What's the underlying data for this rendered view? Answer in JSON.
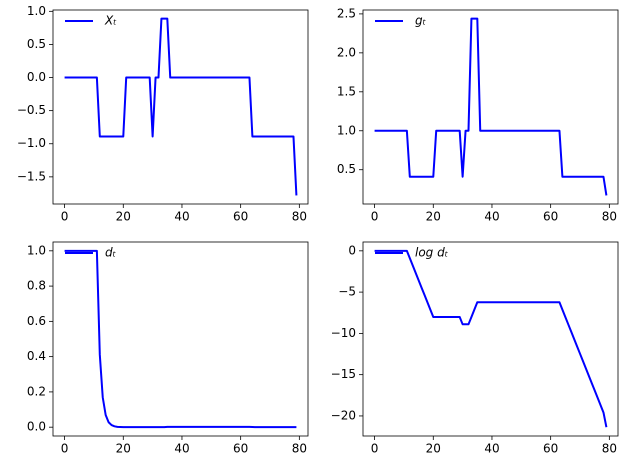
{
  "chart_data": [
    {
      "type": "line",
      "legend": "upper left",
      "grid": false,
      "x": [
        0,
        1,
        2,
        3,
        4,
        5,
        6,
        7,
        8,
        9,
        10,
        11,
        12,
        13,
        14,
        15,
        16,
        17,
        18,
        19,
        20,
        21,
        22,
        23,
        24,
        25,
        26,
        27,
        28,
        29,
        30,
        31,
        32,
        33,
        34,
        35,
        36,
        37,
        38,
        39,
        40,
        41,
        42,
        43,
        44,
        45,
        46,
        47,
        48,
        49,
        50,
        51,
        52,
        53,
        54,
        55,
        56,
        57,
        58,
        59,
        60,
        61,
        62,
        63,
        64,
        65,
        66,
        67,
        68,
        69,
        70,
        71,
        72,
        73,
        74,
        75,
        76,
        77,
        78,
        79
      ],
      "series": [
        {
          "name": "Xₜ",
          "color": "#0000ff",
          "values": [
            0,
            0,
            0,
            0,
            0,
            0,
            0,
            0,
            0,
            0,
            0,
            0,
            -0.89,
            -0.89,
            -0.89,
            -0.89,
            -0.89,
            -0.89,
            -0.89,
            -0.89,
            -0.89,
            0,
            0,
            0,
            0,
            0,
            0,
            0,
            0,
            0,
            -0.89,
            0,
            0,
            0.89,
            0.89,
            0.89,
            0,
            0,
            0,
            0,
            0,
            0,
            0,
            0,
            0,
            0,
            0,
            0,
            0,
            0,
            0,
            0,
            0,
            0,
            0,
            0,
            0,
            0,
            0,
            0,
            0,
            0,
            0,
            0,
            -0.89,
            -0.89,
            -0.89,
            -0.89,
            -0.89,
            -0.89,
            -0.89,
            -0.89,
            -0.89,
            -0.89,
            -0.89,
            -0.89,
            -0.89,
            -0.89,
            -0.89,
            -1.78
          ]
        }
      ],
      "xlim": [
        -3.95,
        82.95
      ],
      "xticks": [
        0,
        20,
        40,
        60,
        80
      ],
      "ylim": [
        -1.91,
        1.02
      ],
      "yticks": [
        {
          "value": -1.5,
          "label": "−1.5"
        },
        {
          "value": -1.0,
          "label": "−1.0"
        },
        {
          "value": -0.5,
          "label": "−0.5"
        },
        {
          "value": 0,
          "label": "0.0"
        },
        {
          "value": 0.5,
          "label": "0.5"
        },
        {
          "value": 1.0,
          "label": "1.0"
        }
      ]
    },
    {
      "type": "line",
      "legend": "upper left",
      "grid": false,
      "x": [
        0,
        1,
        2,
        3,
        4,
        5,
        6,
        7,
        8,
        9,
        10,
        11,
        12,
        13,
        14,
        15,
        16,
        17,
        18,
        19,
        20,
        21,
        22,
        23,
        24,
        25,
        26,
        27,
        28,
        29,
        30,
        31,
        32,
        33,
        34,
        35,
        36,
        37,
        38,
        39,
        40,
        41,
        42,
        43,
        44,
        45,
        46,
        47,
        48,
        49,
        50,
        51,
        52,
        53,
        54,
        55,
        56,
        57,
        58,
        59,
        60,
        61,
        62,
        63,
        64,
        65,
        66,
        67,
        68,
        69,
        70,
        71,
        72,
        73,
        74,
        75,
        76,
        77,
        78,
        79
      ],
      "series": [
        {
          "name": "gₜ",
          "color": "#0000ff",
          "values": [
            1,
            1,
            1,
            1,
            1,
            1,
            1,
            1,
            1,
            1,
            1,
            1,
            0.41,
            0.41,
            0.41,
            0.41,
            0.41,
            0.41,
            0.41,
            0.41,
            0.41,
            1,
            1,
            1,
            1,
            1,
            1,
            1,
            1,
            1,
            0.41,
            1,
            1,
            2.44,
            2.44,
            2.44,
            1,
            1,
            1,
            1,
            1,
            1,
            1,
            1,
            1,
            1,
            1,
            1,
            1,
            1,
            1,
            1,
            1,
            1,
            1,
            1,
            1,
            1,
            1,
            1,
            1,
            1,
            1,
            1,
            0.41,
            0.41,
            0.41,
            0.41,
            0.41,
            0.41,
            0.41,
            0.41,
            0.41,
            0.41,
            0.41,
            0.41,
            0.41,
            0.41,
            0.41,
            0.17
          ]
        }
      ],
      "xlim": [
        -3.95,
        82.95
      ],
      "xticks": [
        0,
        20,
        40,
        60,
        80
      ],
      "ylim": [
        0.06,
        2.55
      ],
      "yticks": [
        {
          "value": 0.5,
          "label": "0.5"
        },
        {
          "value": 1.0,
          "label": "1.0"
        },
        {
          "value": 1.5,
          "label": "1.5"
        },
        {
          "value": 2.0,
          "label": "2.0"
        },
        {
          "value": 2.5,
          "label": "2.5"
        }
      ]
    },
    {
      "type": "line",
      "legend": "upper left",
      "grid": false,
      "x": [
        0,
        1,
        2,
        3,
        4,
        5,
        6,
        7,
        8,
        9,
        10,
        11,
        12,
        13,
        14,
        15,
        16,
        17,
        18,
        19,
        20,
        21,
        22,
        23,
        24,
        25,
        26,
        27,
        28,
        29,
        30,
        31,
        32,
        33,
        34,
        35,
        36,
        37,
        38,
        39,
        40,
        41,
        42,
        43,
        44,
        45,
        46,
        47,
        48,
        49,
        50,
        51,
        52,
        53,
        54,
        55,
        56,
        57,
        58,
        59,
        60,
        61,
        62,
        63,
        64,
        65,
        66,
        67,
        68,
        69,
        70,
        71,
        72,
        73,
        74,
        75,
        76,
        77,
        78,
        79
      ],
      "series": [
        {
          "name": "dₜ",
          "color": "#0000ff",
          "values": [
            1,
            1,
            1,
            1,
            1,
            1,
            1,
            1,
            1,
            1,
            1,
            1,
            0.411,
            0.169,
            0.069,
            0.028,
            0.012,
            0.005,
            0.002,
            0.001,
            0,
            0,
            0,
            0,
            0,
            0,
            0,
            0,
            0,
            0,
            0,
            0,
            0,
            0,
            0,
            0.002,
            0.002,
            0.002,
            0.002,
            0.002,
            0.002,
            0.002,
            0.002,
            0.002,
            0.002,
            0.002,
            0.002,
            0.002,
            0.002,
            0.002,
            0.002,
            0.002,
            0.002,
            0.002,
            0.002,
            0.002,
            0.002,
            0.002,
            0.002,
            0.002,
            0.002,
            0.002,
            0.002,
            0.002,
            0.001,
            0,
            0,
            0,
            0,
            0,
            0,
            0,
            0,
            0,
            0,
            0,
            0,
            0,
            0,
            0
          ]
        }
      ],
      "xlim": [
        -3.95,
        82.95
      ],
      "xticks": [
        0,
        20,
        40,
        60,
        80
      ],
      "ylim": [
        -0.05,
        1.05
      ],
      "yticks": [
        {
          "value": 0,
          "label": "0.0"
        },
        {
          "value": 0.2,
          "label": "0.2"
        },
        {
          "value": 0.4,
          "label": "0.4"
        },
        {
          "value": 0.6,
          "label": "0.6"
        },
        {
          "value": 0.8,
          "label": "0.8"
        },
        {
          "value": 1.0,
          "label": "1.0"
        }
      ]
    },
    {
      "type": "line",
      "legend": "upper left",
      "grid": false,
      "x": [
        0,
        1,
        2,
        3,
        4,
        5,
        6,
        7,
        8,
        9,
        10,
        11,
        12,
        13,
        14,
        15,
        16,
        17,
        18,
        19,
        20,
        21,
        22,
        23,
        24,
        25,
        26,
        27,
        28,
        29,
        30,
        31,
        32,
        33,
        34,
        35,
        36,
        37,
        38,
        39,
        40,
        41,
        42,
        43,
        44,
        45,
        46,
        47,
        48,
        49,
        50,
        51,
        52,
        53,
        54,
        55,
        56,
        57,
        58,
        59,
        60,
        61,
        62,
        63,
        64,
        65,
        66,
        67,
        68,
        69,
        70,
        71,
        72,
        73,
        74,
        75,
        76,
        77,
        78,
        79
      ],
      "series": [
        {
          "name": "log dₜ",
          "color": "#0000ff",
          "values": [
            0,
            0,
            0,
            0,
            0,
            0,
            0,
            0,
            0,
            0,
            0,
            0,
            -0.89,
            -1.78,
            -2.67,
            -3.56,
            -4.45,
            -5.34,
            -6.23,
            -7.12,
            -8.01,
            -8.01,
            -8.01,
            -8.01,
            -8.01,
            -8.01,
            -8.01,
            -8.01,
            -8.01,
            -8.01,
            -8.9,
            -8.9,
            -8.9,
            -8.01,
            -7.12,
            -6.23,
            -6.23,
            -6.23,
            -6.23,
            -6.23,
            -6.23,
            -6.23,
            -6.23,
            -6.23,
            -6.23,
            -6.23,
            -6.23,
            -6.23,
            -6.23,
            -6.23,
            -6.23,
            -6.23,
            -6.23,
            -6.23,
            -6.23,
            -6.23,
            -6.23,
            -6.23,
            -6.23,
            -6.23,
            -6.23,
            -6.23,
            -6.23,
            -6.23,
            -7.12,
            -8.01,
            -8.9,
            -9.79,
            -10.68,
            -11.57,
            -12.46,
            -13.35,
            -14.24,
            -15.13,
            -16.02,
            -16.91,
            -17.8,
            -18.69,
            -19.58,
            -21.36
          ]
        }
      ],
      "xlim": [
        -3.95,
        82.95
      ],
      "xticks": [
        0,
        20,
        40,
        60,
        80
      ],
      "ylim": [
        -22.43,
        1.07
      ],
      "yticks": [
        {
          "value": -20,
          "label": "−20"
        },
        {
          "value": -15,
          "label": "−15"
        },
        {
          "value": -10,
          "label": "−10"
        },
        {
          "value": -5,
          "label": "−5"
        },
        {
          "value": 0,
          "label": "0"
        }
      ]
    }
  ]
}
